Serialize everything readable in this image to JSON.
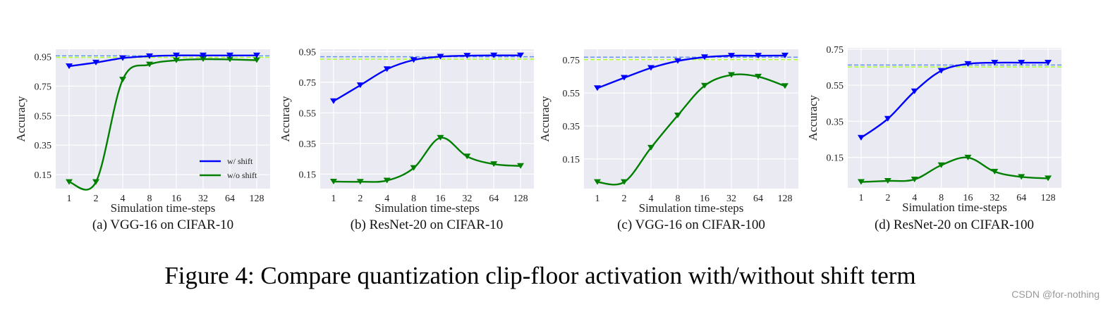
{
  "figure_title": "Figure 4: Compare quantization clip-floor activation with/without shift term",
  "watermark": "CSDN @for-nothing",
  "colors": {
    "w_shift": "#0000ff",
    "wo_shift": "#008000",
    "w_shift_baseline": "#6495ed",
    "wo_shift_baseline": "#adff2f",
    "panel_bg": "#eaeaf2",
    "grid": "#ffffff"
  },
  "chart_data": [
    {
      "type": "line",
      "caption": "(a) VGG-16 on CIFAR-10",
      "xlabel": "Simulation time-steps",
      "ylabel": "Accuracy",
      "categories": [
        "1",
        "2",
        "4",
        "8",
        "16",
        "32",
        "64",
        "128"
      ],
      "yticks": [
        0.15,
        0.35,
        0.55,
        0.75,
        0.95
      ],
      "ytick_labels": [
        "0.15",
        "0.35",
        "0.55",
        "0.75",
        "0.95"
      ],
      "ylim": [
        0.055,
        1.0
      ],
      "grid": true,
      "legend": "lower-right",
      "series": [
        {
          "name": "w/ shift",
          "values": [
            0.885,
            0.91,
            0.94,
            0.953,
            0.958,
            0.958,
            0.958,
            0.958
          ],
          "baseline": 0.955
        },
        {
          "name": "w/o shift",
          "values": [
            0.1,
            0.1,
            0.794,
            0.897,
            0.925,
            0.933,
            0.931,
            0.926
          ],
          "baseline": 0.945
        }
      ]
    },
    {
      "type": "line",
      "caption": "(b) ResNet-20 on CIFAR-10",
      "xlabel": "Simulation time-steps",
      "ylabel": "Accuracy",
      "categories": [
        "1",
        "2",
        "4",
        "8",
        "16",
        "32",
        "64",
        "128"
      ],
      "yticks": [
        0.15,
        0.35,
        0.55,
        0.75,
        0.95
      ],
      "ytick_labels": [
        "0.15",
        "0.35",
        "0.55",
        "0.75",
        "0.95"
      ],
      "ylim": [
        0.055,
        0.965
      ],
      "grid": true,
      "series": [
        {
          "values": [
            0.626,
            0.73,
            0.835,
            0.895,
            0.917,
            0.923,
            0.925,
            0.925
          ],
          "baseline": 0.916
        },
        {
          "values": [
            0.101,
            0.1,
            0.108,
            0.19,
            0.387,
            0.265,
            0.215,
            0.203
          ],
          "baseline": 0.9
        }
      ]
    },
    {
      "type": "line",
      "caption": "(c) VGG-16 on CIFAR-100",
      "xlabel": "Simulation time-steps",
      "ylabel": "Accuracy",
      "categories": [
        "1",
        "2",
        "4",
        "8",
        "16",
        "32",
        "64",
        "128"
      ],
      "yticks": [
        0.15,
        0.35,
        0.55,
        0.75
      ],
      "ytick_labels": [
        "0.15",
        "0.35",
        "0.55",
        "0.75"
      ],
      "ylim": [
        -0.03,
        0.815
      ],
      "grid": true,
      "series": [
        {
          "values": [
            0.579,
            0.642,
            0.702,
            0.744,
            0.767,
            0.776,
            0.776,
            0.777
          ],
          "baseline": 0.767
        },
        {
          "values": [
            0.01,
            0.01,
            0.218,
            0.414,
            0.594,
            0.659,
            0.649,
            0.592
          ],
          "baseline": 0.752
        }
      ]
    },
    {
      "type": "line",
      "caption": "(d) ResNet-20 on CIFAR-100",
      "xlabel": "Simulation time-steps",
      "ylabel": "Accuracy",
      "categories": [
        "1",
        "2",
        "4",
        "8",
        "16",
        "32",
        "64",
        "128"
      ],
      "yticks": [
        0.15,
        0.35,
        0.55,
        0.75
      ],
      "ytick_labels": [
        "0.15",
        "0.35",
        "0.55",
        "0.75"
      ],
      "ylim": [
        -0.019,
        0.757
      ],
      "grid": true,
      "series": [
        {
          "values": [
            0.259,
            0.364,
            0.516,
            0.63,
            0.668,
            0.675,
            0.675,
            0.675
          ],
          "baseline": 0.662
        },
        {
          "values": [
            0.014,
            0.02,
            0.028,
            0.107,
            0.149,
            0.071,
            0.042,
            0.034
          ],
          "baseline": 0.651
        }
      ]
    }
  ]
}
